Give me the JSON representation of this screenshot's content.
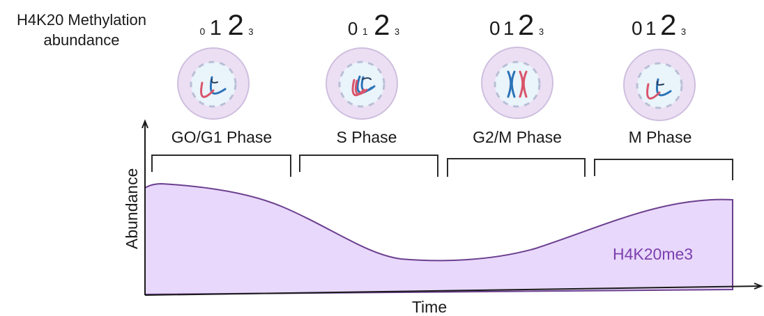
{
  "diagram": {
    "header": {
      "line1": "H4K20 Methylation",
      "line2": "abundance"
    },
    "phases": [
      {
        "label": "GO/G1 Phase",
        "methylation_levels": [
          "0",
          "1",
          "2",
          "3"
        ],
        "emphasis": [
          1,
          2
        ]
      },
      {
        "label": "S Phase",
        "methylation_levels": [
          "0",
          "1",
          "2",
          "3"
        ],
        "emphasis": [
          0,
          2
        ]
      },
      {
        "label": "G2/M Phase",
        "methylation_levels": [
          "0",
          "1",
          "2",
          "3"
        ],
        "emphasis": [
          0,
          1,
          2
        ]
      },
      {
        "label": "M Phase",
        "methylation_levels": [
          "0",
          "1",
          "2",
          "3"
        ],
        "emphasis": [
          0,
          1,
          2
        ]
      }
    ],
    "chart": {
      "y_axis_label": "Abundance",
      "x_axis_label": "Time",
      "series_label": "H4K20me3"
    },
    "colors": {
      "text": "#1a1a1a",
      "axis": "#1a1a1a",
      "area_fill": "#e8d8fb",
      "area_stroke": "#6b3f8f",
      "series_label": "#7c3fae",
      "cell_outer": "#ecdff3",
      "cell_outer_stroke": "#cfbfdf",
      "cell_inner": "#eaf4fb",
      "dna_blue": "#2b73b7",
      "dna_pink": "#d9546a",
      "dna_dark": "#243a5a"
    }
  }
}
